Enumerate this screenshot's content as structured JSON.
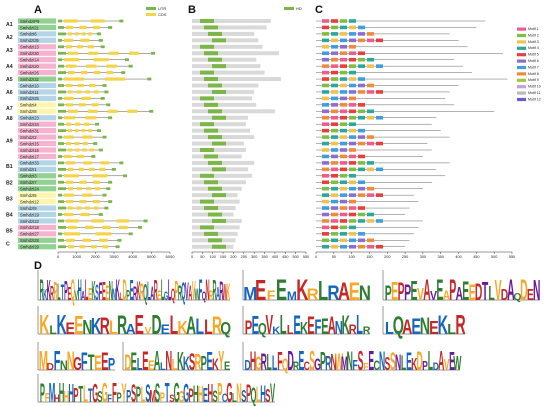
{
  "panels": {
    "a": "A",
    "b": "B",
    "c": "C",
    "d": "D"
  },
  "groups": [
    "A1",
    "A2",
    "A3",
    "A4",
    "A5",
    "A6",
    "A7",
    "A8",
    "A9",
    "B1",
    "B2",
    "B3",
    "B4",
    "B5",
    "C"
  ],
  "genes": [
    {
      "name": "SmhdzIP9",
      "group": "A1",
      "color": "#7fc97f"
    },
    {
      "name": "SmhdzI21",
      "group": "A1",
      "color": "#7fc97f"
    },
    {
      "name": "SmhdzI6",
      "group": "A2",
      "color": "#a6cee3"
    },
    {
      "name": "SmhdzI35",
      "group": "A2",
      "color": "#a6cee3"
    },
    {
      "name": "SmhdzI13",
      "group": "A3",
      "color": "#f4a6c8"
    },
    {
      "name": "SmhdzI30",
      "group": "A3",
      "color": "#f4a6c8"
    },
    {
      "name": "SmhdzI14",
      "group": "A4",
      "color": "#f4a6c8"
    },
    {
      "name": "SmhdzI20",
      "group": "A4",
      "color": "#f4a6c8"
    },
    {
      "name": "SmhdzI26",
      "group": "A4",
      "color": "#f4a6c8"
    },
    {
      "name": "SmhdzI32",
      "group": "A5",
      "color": "#7fc97f"
    },
    {
      "name": "SmhdzI10",
      "group": "A6",
      "color": "#a6cee3"
    },
    {
      "name": "SmhdzI11",
      "group": "A6",
      "color": "#a6cee3"
    },
    {
      "name": "SmhdzI25",
      "group": "A6",
      "color": "#a6cee3"
    },
    {
      "name": "SmhdzI4",
      "group": "A7",
      "color": "#fff59d"
    },
    {
      "name": "SmhdzI8",
      "group": "A7",
      "color": "#fff59d"
    },
    {
      "name": "SmhdzI23",
      "group": "A8",
      "color": "#a6cee3"
    },
    {
      "name": "SmhdzI34",
      "group": "A9",
      "color": "#f4a6c8"
    },
    {
      "name": "SmhdzI31",
      "group": "A9",
      "color": "#f4a6c8"
    },
    {
      "name": "SmhdzI2",
      "group": "A9",
      "color": "#f4a6c8"
    },
    {
      "name": "SmhdzI15",
      "group": "A9",
      "color": "#f4a6c8"
    },
    {
      "name": "SmhdzI16",
      "group": "A9",
      "color": "#f4a6c8"
    },
    {
      "name": "SmhdzI17",
      "group": "A9",
      "color": "#f4a6c8"
    },
    {
      "name": "SmhdzI33",
      "group": "B1",
      "color": "#a6cee3"
    },
    {
      "name": "SmhdzI1",
      "group": "B1",
      "color": "#a6cee3"
    },
    {
      "name": "SmhdzI3",
      "group": "B2",
      "color": "#7fc97f"
    },
    {
      "name": "SmhdzI7",
      "group": "B2",
      "color": "#7fc97f"
    },
    {
      "name": "SmhdzI24",
      "group": "B2",
      "color": "#7fc97f"
    },
    {
      "name": "SmhdzI5",
      "group": "B3",
      "color": "#fff59d"
    },
    {
      "name": "SmhdzI12",
      "group": "B3",
      "color": "#fff59d"
    },
    {
      "name": "SmhdzI9",
      "group": "B4",
      "color": "#a6cee3"
    },
    {
      "name": "SmhdzI19",
      "group": "B4",
      "color": "#a6cee3"
    },
    {
      "name": "SmhdzI22",
      "group": "B4",
      "color": "#a6cee3"
    },
    {
      "name": "SmhdzI18",
      "group": "B5",
      "color": "#f4a6c8"
    },
    {
      "name": "SmhdzI27",
      "group": "B5",
      "color": "#f4a6c8"
    },
    {
      "name": "SmhdzI28",
      "group": "C",
      "color": "#7fc97f"
    },
    {
      "name": "SmhdzI29",
      "group": "C",
      "color": "#7fc97f"
    }
  ],
  "panel_a": {
    "legend": [
      {
        "label": "UTR",
        "color": "#7ab648"
      },
      {
        "label": "CDS",
        "color": "#f5d547"
      }
    ],
    "axis_ticks": [
      "0",
      "1000",
      "2000",
      "3000",
      "4000",
      "5000",
      "6000"
    ],
    "axis_max": 6000,
    "gene_lengths": [
      3500,
      2900,
      2300,
      2400,
      2500,
      5200,
      3800,
      4000,
      3600,
      5000,
      2600,
      2700,
      2500,
      2800,
      5100,
      2900,
      2200,
      2300,
      2600,
      2100,
      2400,
      2000,
      3500,
      3100,
      3700,
      2900,
      2800,
      2600,
      2900,
      2700,
      2400,
      4800,
      4500,
      4000,
      3400,
      3300
    ]
  },
  "panel_b": {
    "legend": [
      {
        "label": "HD",
        "color": "#7ab648"
      }
    ],
    "axis_ticks": [
      "0",
      "50",
      "100",
      "150",
      "200",
      "250",
      "300",
      "350",
      "400",
      "450",
      "500",
      "550"
    ],
    "axis_max": 550,
    "protein_lengths": [
      380,
      360,
      300,
      320,
      340,
      420,
      310,
      330,
      350,
      430,
      320,
      300,
      290,
      310,
      400,
      270,
      260,
      280,
      300,
      250,
      260,
      240,
      300,
      270,
      290,
      260,
      240,
      220,
      230,
      210,
      200,
      240,
      230,
      220,
      210,
      200
    ]
  },
  "panel_c": {
    "legend": [
      {
        "label": "Motif 1",
        "color": "#ef5b8a"
      },
      {
        "label": "Motif 2",
        "color": "#7fbf3f"
      },
      {
        "label": "Motif 3",
        "color": "#f2c14e"
      },
      {
        "label": "Motif 4",
        "color": "#2ba89b"
      },
      {
        "label": "Motif 5",
        "color": "#e83e3e"
      },
      {
        "label": "Motif 6",
        "color": "#8a6fd1"
      },
      {
        "label": "Motif 7",
        "color": "#3d9ee0"
      },
      {
        "label": "Motif 8",
        "color": "#f08a3c"
      },
      {
        "label": "Motif 9",
        "color": "#9ec93b"
      },
      {
        "label": "Motif 10",
        "color": "#c7a0d9"
      },
      {
        "label": "Motif 11",
        "color": "#bbbbbb"
      },
      {
        "label": "Motif 12",
        "color": "#6a5acd"
      }
    ],
    "axis_ticks": [
      "0",
      "50",
      "100",
      "150",
      "200",
      "250",
      "300",
      "350",
      "400",
      "450",
      "500",
      "550"
    ],
    "axis_max": 550
  },
  "panel_d": {
    "motifs": [
      {
        "id": "1",
        "sequence": "RKKRRLTPEQVHALEKSFEENNKLDPERKRQLARELGLQPRQVAVWFQNRRARWK",
        "colors": [
          "#2e7d32",
          "#c62828",
          "#1565c0",
          "#f9a825",
          "#6a1b9a"
        ]
      },
      {
        "id": "2",
        "sequence": "MEFEMKRLRAEN",
        "colors": [
          "#c62828",
          "#1565c0",
          "#2e7d32",
          "#f9a825"
        ]
      },
      {
        "id": "3",
        "sequence": "PEPPEVAVEAPAEEDTLVDAQDEN",
        "colors": [
          "#c62828",
          "#f9a825",
          "#2e7d32",
          "#6a1b9a"
        ]
      },
      {
        "id": "4",
        "sequence": "KLKEENKRLRAEVDELKALLRQ",
        "colors": [
          "#c62828",
          "#1565c0",
          "#2e7d32",
          "#f9a825"
        ]
      },
      {
        "id": "5",
        "sequence": "PEQVKLLEKEFEANKRLR",
        "colors": [
          "#2e7d32",
          "#c62828",
          "#1565c0"
        ]
      },
      {
        "id": "6",
        "sequence": "LQAENEKLR",
        "colors": [
          "#2e7d32",
          "#c62828",
          "#1565c0"
        ]
      },
      {
        "id": "7",
        "sequence": "MDFNNGFTEEP",
        "colors": [
          "#1565c0",
          "#c62828",
          "#f9a825",
          "#2e7d32"
        ]
      },
      {
        "id": "8",
        "sequence": "DELEEALNLKKSRPEKYE",
        "colors": [
          "#c62828",
          "#1565c0",
          "#2e7d32",
          "#f9a825"
        ]
      },
      {
        "id": "9",
        "sequence": "DHGRLLFQDRECSGPRNWMNFSFECNSSNLEKDPLDAVEW",
        "colors": [
          "#c62828",
          "#2e7d32",
          "#f9a825",
          "#1565c0",
          "#6a1b9a"
        ]
      },
      {
        "id": "10",
        "sequence": "PFMHHHHPTLTGSGFFPYPSPLSMSPTSGGGPHHEHSPCGLNSPQLHSV",
        "colors": [
          "#f9a825",
          "#2e7d32",
          "#c62828",
          "#1565c0"
        ]
      }
    ]
  }
}
